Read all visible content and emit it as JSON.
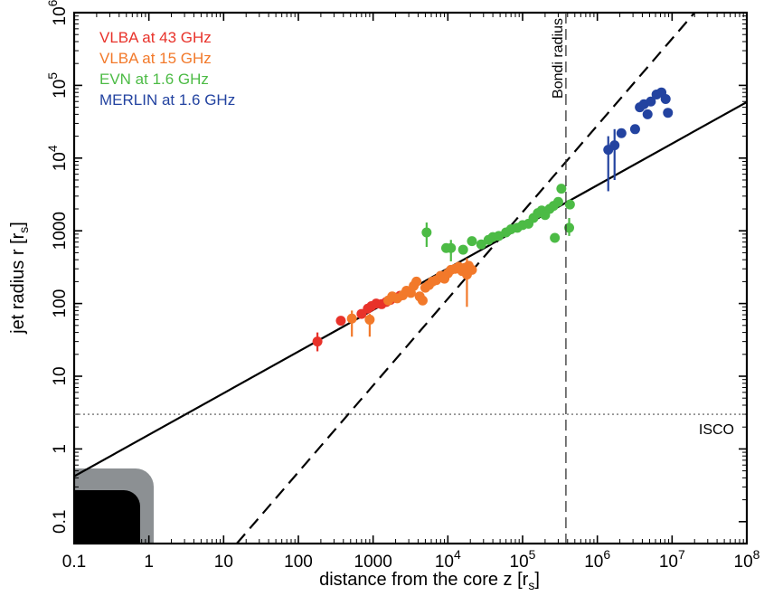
{
  "chart_data": {
    "type": "scatter",
    "xlabel": "distance from the core z [r",
    "xlabel_sub": "s",
    "xlabel_end": "]",
    "ylabel": "jet radius r [r",
    "ylabel_sub": "s",
    "ylabel_end": "]",
    "xscale": "log",
    "yscale": "log",
    "xlim": [
      0.1,
      100000000
    ],
    "ylim": [
      0.05,
      1000000
    ],
    "x_ticks": [
      {
        "value": 0.1,
        "label": "0.1"
      },
      {
        "value": 1,
        "label": "1"
      },
      {
        "value": 10,
        "label": "10"
      },
      {
        "value": 100,
        "label": "100"
      },
      {
        "value": 1000,
        "label": "1000"
      },
      {
        "value": 10000,
        "base": "10",
        "exp": "4"
      },
      {
        "value": 100000,
        "base": "10",
        "exp": "5"
      },
      {
        "value": 1000000,
        "base": "10",
        "exp": "6"
      },
      {
        "value": 10000000,
        "base": "10",
        "exp": "7"
      },
      {
        "value": 100000000,
        "base": "10",
        "exp": "8"
      }
    ],
    "y_ticks": [
      {
        "value": 0.1,
        "label": "0.1"
      },
      {
        "value": 1,
        "label": "1"
      },
      {
        "value": 10,
        "label": "10"
      },
      {
        "value": 100,
        "label": "100"
      },
      {
        "value": 1000,
        "label": "1000"
      },
      {
        "value": 10000,
        "base": "10",
        "exp": "4"
      },
      {
        "value": 100000,
        "base": "10",
        "exp": "5"
      },
      {
        "value": 1000000,
        "base": "10",
        "exp": "6"
      }
    ],
    "legend_position": "top-left",
    "series": [
      {
        "name": "VLBA at 43 GHz",
        "color": "#e8322a",
        "points": [
          {
            "x": 180,
            "y": 30,
            "ylo": 22,
            "yhi": 40
          },
          {
            "x": 370,
            "y": 58
          },
          {
            "x": 700,
            "y": 72
          },
          {
            "x": 850,
            "y": 85
          },
          {
            "x": 950,
            "y": 92
          },
          {
            "x": 1100,
            "y": 100
          },
          {
            "x": 1300,
            "y": 98
          },
          {
            "x": 1500,
            "y": 105
          },
          {
            "x": 1700,
            "y": 112
          },
          {
            "x": 2000,
            "y": 120
          },
          {
            "x": 2300,
            "y": 128
          }
        ]
      },
      {
        "name": "VLBA at 15 GHz",
        "color": "#f2792a",
        "points": [
          {
            "x": 520,
            "y": 62,
            "ylo": 35,
            "yhi": 80
          },
          {
            "x": 900,
            "y": 60,
            "ylo": 35,
            "yhi": 72
          },
          {
            "x": 1600,
            "y": 110
          },
          {
            "x": 1800,
            "y": 125
          },
          {
            "x": 2100,
            "y": 118
          },
          {
            "x": 2500,
            "y": 130
          },
          {
            "x": 2800,
            "y": 150
          },
          {
            "x": 3200,
            "y": 140
          },
          {
            "x": 3500,
            "y": 175
          },
          {
            "x": 3800,
            "y": 200
          },
          {
            "x": 4200,
            "y": 125
          },
          {
            "x": 4600,
            "y": 110
          },
          {
            "x": 5000,
            "y": 165
          },
          {
            "x": 5600,
            "y": 180
          },
          {
            "x": 6200,
            "y": 200
          },
          {
            "x": 7000,
            "y": 210
          },
          {
            "x": 8000,
            "y": 240
          },
          {
            "x": 9000,
            "y": 220
          },
          {
            "x": 10000,
            "y": 260
          },
          {
            "x": 11000,
            "y": 290
          },
          {
            "x": 12500,
            "y": 300
          },
          {
            "x": 14000,
            "y": 320
          },
          {
            "x": 15500,
            "y": 280
          },
          {
            "x": 17000,
            "y": 310
          },
          {
            "x": 19000,
            "y": 330
          },
          {
            "x": 21000,
            "y": 290
          },
          {
            "x": 18000,
            "y": 250,
            "ylo": 90,
            "yhi": 420
          }
        ]
      },
      {
        "name": "EVN at 1.6 GHz",
        "color": "#4cbb45",
        "points": [
          {
            "x": 11000,
            "y": 580,
            "ylo": 380,
            "yhi": 750
          },
          {
            "x": 16000,
            "y": 550
          },
          {
            "x": 21000,
            "y": 720
          },
          {
            "x": 28000,
            "y": 650
          },
          {
            "x": 35000,
            "y": 750
          },
          {
            "x": 40000,
            "y": 820
          },
          {
            "x": 48000,
            "y": 850
          },
          {
            "x": 60000,
            "y": 950
          },
          {
            "x": 70000,
            "y": 1050
          },
          {
            "x": 85000,
            "y": 1100
          },
          {
            "x": 100000,
            "y": 1200
          },
          {
            "x": 120000,
            "y": 1250
          },
          {
            "x": 140000,
            "y": 1500
          },
          {
            "x": 160000,
            "y": 1750
          },
          {
            "x": 180000,
            "y": 1900
          },
          {
            "x": 200000,
            "y": 1650
          },
          {
            "x": 230000,
            "y": 2000
          },
          {
            "x": 260000,
            "y": 2200
          },
          {
            "x": 300000,
            "y": 2500
          },
          {
            "x": 330000,
            "y": 3800
          },
          {
            "x": 270000,
            "y": 800
          },
          {
            "x": 430000,
            "y": 2300
          },
          {
            "x": 420000,
            "y": 1100,
            "ylo": 850,
            "yhi": 1500
          },
          {
            "x": 5200,
            "y": 950,
            "ylo": 600,
            "yhi": 1300
          },
          {
            "x": 9500,
            "y": 580
          }
        ]
      },
      {
        "name": "MERLIN at 1.6 GHz",
        "color": "#2343a0",
        "points": [
          {
            "x": 1400000,
            "y": 13000,
            "ylo": 3500,
            "yhi": 20000
          },
          {
            "x": 1700000,
            "y": 15000,
            "ylo": 5000,
            "yhi": 25000
          },
          {
            "x": 2100000,
            "y": 22000
          },
          {
            "x": 3200000,
            "y": 25000
          },
          {
            "x": 3700000,
            "y": 50000
          },
          {
            "x": 4200000,
            "y": 55000
          },
          {
            "x": 4700000,
            "y": 40000
          },
          {
            "x": 5200000,
            "y": 60000
          },
          {
            "x": 6200000,
            "y": 75000
          },
          {
            "x": 7200000,
            "y": 80000
          },
          {
            "x": 8200000,
            "y": 65000
          },
          {
            "x": 8800000,
            "y": 42000
          }
        ]
      }
    ],
    "lines": [
      {
        "style": "solid",
        "x": [
          0.1,
          100000000
        ],
        "y": [
          0.42,
          59000
        ]
      },
      {
        "style": "dashed",
        "x": [
          15,
          20000000
        ],
        "y": [
          0.05,
          1000000
        ]
      }
    ],
    "annotations": [
      {
        "text": "Bondi radius",
        "type": "vertical",
        "x": 380000
      },
      {
        "text": "ISCO",
        "type": "horizontal",
        "y": 3
      }
    ]
  }
}
